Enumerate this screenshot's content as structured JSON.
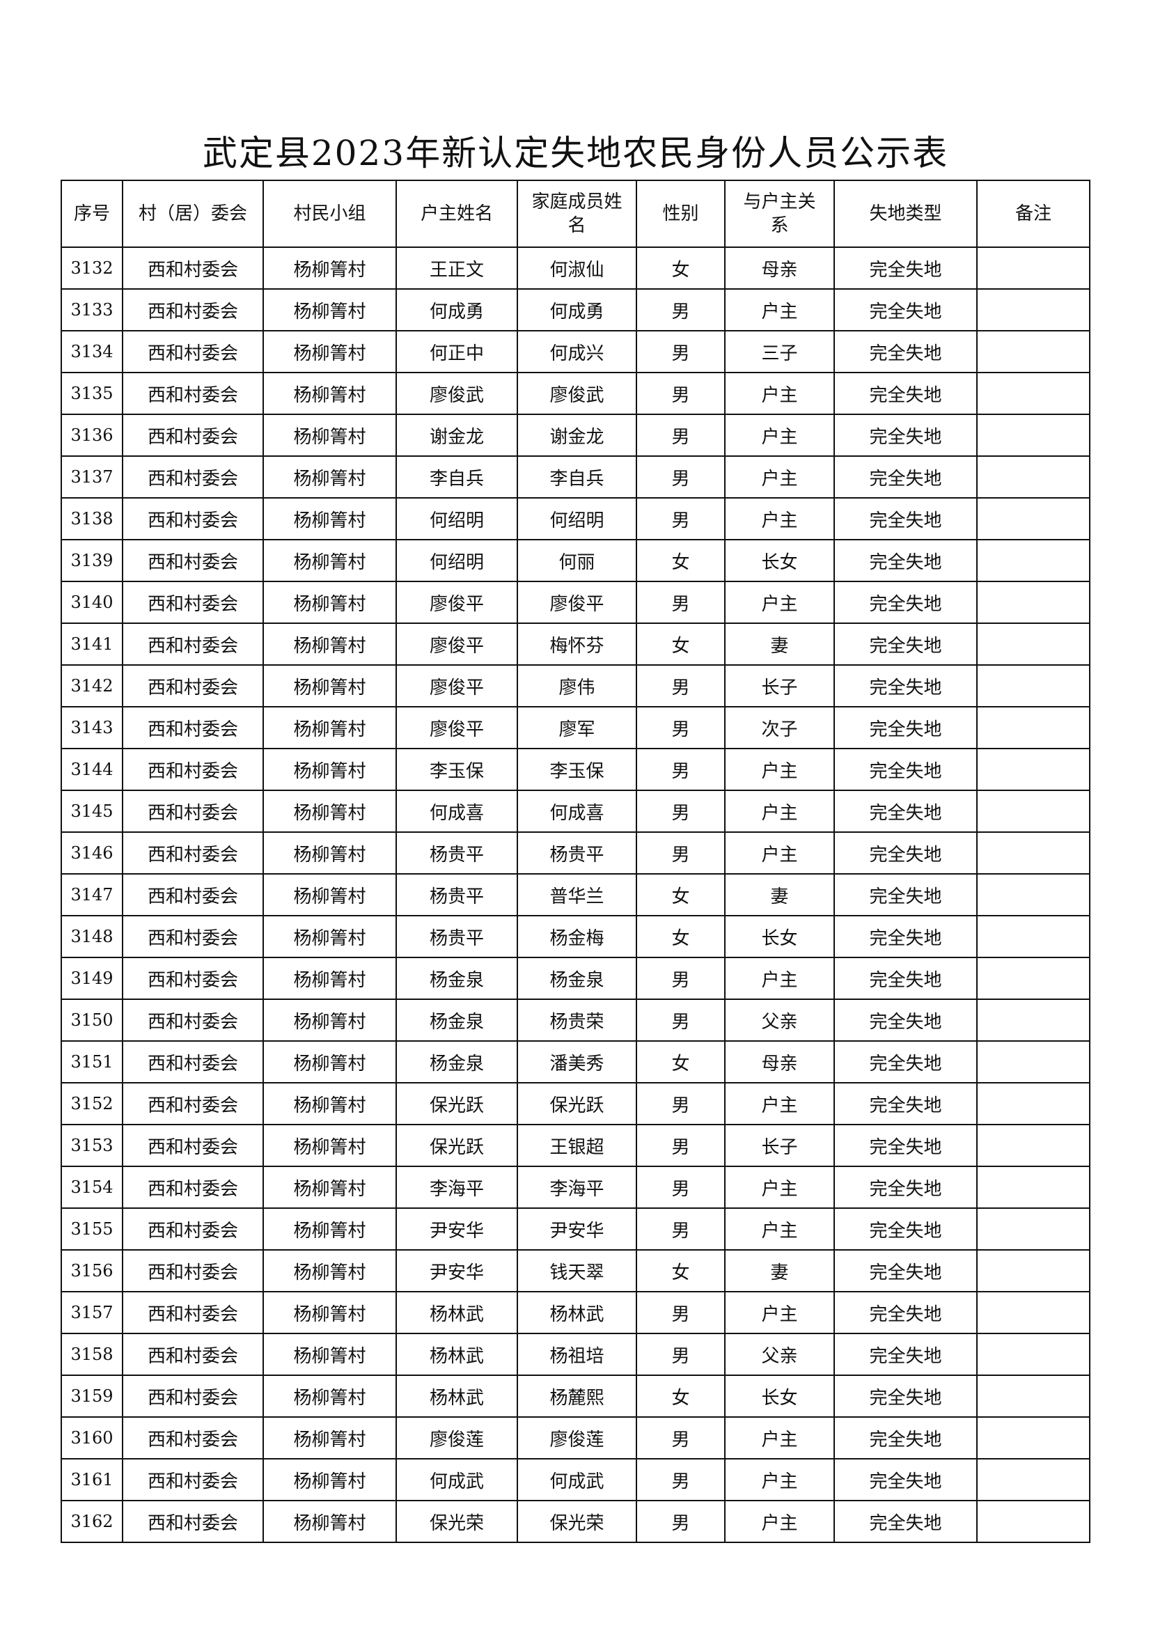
{
  "title": "武定县2023年新认定失地农民身份人员公示表",
  "columns": [
    "序号",
    "村（居）委会",
    "村民小组",
    "户主姓名",
    "家庭成员姓名",
    "性别",
    "与户主关系",
    "失地类型",
    "备注"
  ],
  "rows": [
    [
      "3132",
      "西和村委会",
      "杨柳箐村",
      "王正文",
      "何淑仙",
      "女",
      "母亲",
      "完全失地",
      ""
    ],
    [
      "3133",
      "西和村委会",
      "杨柳箐村",
      "何成勇",
      "何成勇",
      "男",
      "户主",
      "完全失地",
      ""
    ],
    [
      "3134",
      "西和村委会",
      "杨柳箐村",
      "何正中",
      "何成兴",
      "男",
      "三子",
      "完全失地",
      ""
    ],
    [
      "3135",
      "西和村委会",
      "杨柳箐村",
      "廖俊武",
      "廖俊武",
      "男",
      "户主",
      "完全失地",
      ""
    ],
    [
      "3136",
      "西和村委会",
      "杨柳箐村",
      "谢金龙",
      "谢金龙",
      "男",
      "户主",
      "完全失地",
      ""
    ],
    [
      "3137",
      "西和村委会",
      "杨柳箐村",
      "李自兵",
      "李自兵",
      "男",
      "户主",
      "完全失地",
      ""
    ],
    [
      "3138",
      "西和村委会",
      "杨柳箐村",
      "何绍明",
      "何绍明",
      "男",
      "户主",
      "完全失地",
      ""
    ],
    [
      "3139",
      "西和村委会",
      "杨柳箐村",
      "何绍明",
      "何丽",
      "女",
      "长女",
      "完全失地",
      ""
    ],
    [
      "3140",
      "西和村委会",
      "杨柳箐村",
      "廖俊平",
      "廖俊平",
      "男",
      "户主",
      "完全失地",
      ""
    ],
    [
      "3141",
      "西和村委会",
      "杨柳箐村",
      "廖俊平",
      "梅怀芬",
      "女",
      "妻",
      "完全失地",
      ""
    ],
    [
      "3142",
      "西和村委会",
      "杨柳箐村",
      "廖俊平",
      "廖伟",
      "男",
      "长子",
      "完全失地",
      ""
    ],
    [
      "3143",
      "西和村委会",
      "杨柳箐村",
      "廖俊平",
      "廖军",
      "男",
      "次子",
      "完全失地",
      ""
    ],
    [
      "3144",
      "西和村委会",
      "杨柳箐村",
      "李玉保",
      "李玉保",
      "男",
      "户主",
      "完全失地",
      ""
    ],
    [
      "3145",
      "西和村委会",
      "杨柳箐村",
      "何成喜",
      "何成喜",
      "男",
      "户主",
      "完全失地",
      ""
    ],
    [
      "3146",
      "西和村委会",
      "杨柳箐村",
      "杨贵平",
      "杨贵平",
      "男",
      "户主",
      "完全失地",
      ""
    ],
    [
      "3147",
      "西和村委会",
      "杨柳箐村",
      "杨贵平",
      "普华兰",
      "女",
      "妻",
      "完全失地",
      ""
    ],
    [
      "3148",
      "西和村委会",
      "杨柳箐村",
      "杨贵平",
      "杨金梅",
      "女",
      "长女",
      "完全失地",
      ""
    ],
    [
      "3149",
      "西和村委会",
      "杨柳箐村",
      "杨金泉",
      "杨金泉",
      "男",
      "户主",
      "完全失地",
      ""
    ],
    [
      "3150",
      "西和村委会",
      "杨柳箐村",
      "杨金泉",
      "杨贵荣",
      "男",
      "父亲",
      "完全失地",
      ""
    ],
    [
      "3151",
      "西和村委会",
      "杨柳箐村",
      "杨金泉",
      "潘美秀",
      "女",
      "母亲",
      "完全失地",
      ""
    ],
    [
      "3152",
      "西和村委会",
      "杨柳箐村",
      "保光跃",
      "保光跃",
      "男",
      "户主",
      "完全失地",
      ""
    ],
    [
      "3153",
      "西和村委会",
      "杨柳箐村",
      "保光跃",
      "王银超",
      "男",
      "长子",
      "完全失地",
      ""
    ],
    [
      "3154",
      "西和村委会",
      "杨柳箐村",
      "李海平",
      "李海平",
      "男",
      "户主",
      "完全失地",
      ""
    ],
    [
      "3155",
      "西和村委会",
      "杨柳箐村",
      "尹安华",
      "尹安华",
      "男",
      "户主",
      "完全失地",
      ""
    ],
    [
      "3156",
      "西和村委会",
      "杨柳箐村",
      "尹安华",
      "钱天翠",
      "女",
      "妻",
      "完全失地",
      ""
    ],
    [
      "3157",
      "西和村委会",
      "杨柳箐村",
      "杨林武",
      "杨林武",
      "男",
      "户主",
      "完全失地",
      ""
    ],
    [
      "3158",
      "西和村委会",
      "杨柳箐村",
      "杨林武",
      "杨祖培",
      "男",
      "父亲",
      "完全失地",
      ""
    ],
    [
      "3159",
      "西和村委会",
      "杨柳箐村",
      "杨林武",
      "杨麓熙",
      "女",
      "长女",
      "完全失地",
      ""
    ],
    [
      "3160",
      "西和村委会",
      "杨柳箐村",
      "廖俊莲",
      "廖俊莲",
      "男",
      "户主",
      "完全失地",
      ""
    ],
    [
      "3161",
      "西和村委会",
      "杨柳箐村",
      "何成武",
      "何成武",
      "男",
      "户主",
      "完全失地",
      ""
    ],
    [
      "3162",
      "西和村委会",
      "杨柳箐村",
      "保光荣",
      "保光荣",
      "男",
      "户主",
      "完全失地",
      ""
    ]
  ]
}
